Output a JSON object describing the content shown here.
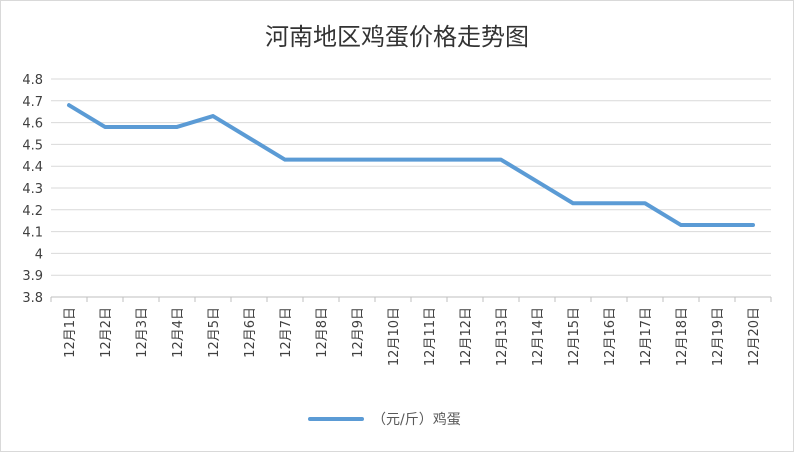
{
  "chart_data": {
    "type": "line",
    "title": "河南地区鸡蛋价格走势图",
    "categories": [
      "12月1日",
      "12月2日",
      "12月3日",
      "12月4日",
      "12月5日",
      "12月6日",
      "12月7日",
      "12月8日",
      "12月9日",
      "12月10日",
      "12月11日",
      "12月12日",
      "12月13日",
      "12月14日",
      "12月15日",
      "12月16日",
      "12月17日",
      "12月18日",
      "12月19日",
      "12月20日"
    ],
    "series": [
      {
        "name": "（元/斤）鸡蛋",
        "color": "#5b9bd5",
        "values": [
          4.68,
          4.58,
          4.58,
          4.58,
          4.63,
          4.53,
          4.43,
          4.43,
          4.43,
          4.43,
          4.43,
          4.43,
          4.43,
          4.33,
          4.23,
          4.23,
          4.23,
          4.13,
          4.13,
          4.13
        ]
      }
    ],
    "yticks": [
      "3.8",
      "3.9",
      "4",
      "4.1",
      "4.2",
      "4.3",
      "4.4",
      "4.5",
      "4.6",
      "4.7",
      "4.8"
    ],
    "ylim": [
      3.8,
      4.8
    ],
    "grid": true,
    "legend_position": "bottom",
    "xlabel": "",
    "ylabel": ""
  }
}
